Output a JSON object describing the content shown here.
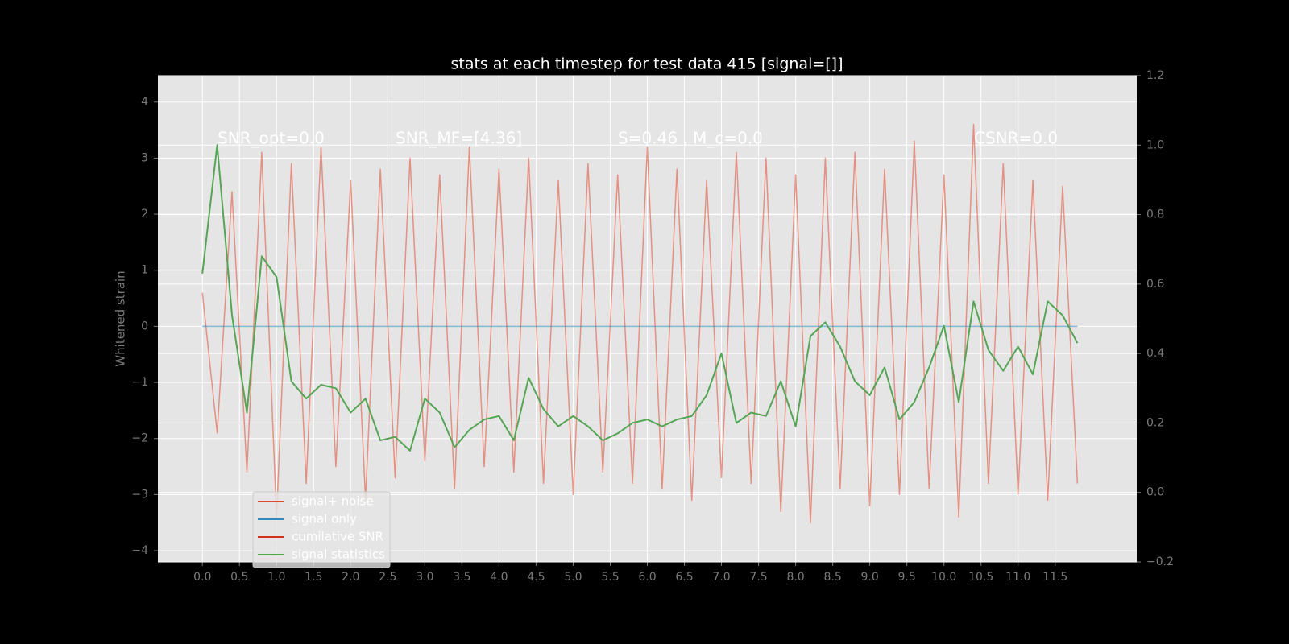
{
  "chart_data": {
    "type": "line",
    "title": "stats at each timestep for test data 415 [signal=[]]",
    "ylabel": "Whitened strain",
    "annotations": [
      "SNR_opt=0.0",
      "SNR_MF=[4.36]",
      "S=0.46 , M_c=0.0",
      "CSNR=0.0"
    ],
    "x": [
      0,
      0.2,
      0.4,
      0.6,
      0.8,
      1,
      1.2,
      1.4,
      1.6,
      1.8,
      2,
      2.2,
      2.4,
      2.6,
      2.8,
      3,
      3.2,
      3.4,
      3.6,
      3.8,
      4,
      4.2,
      4.4,
      4.6,
      4.8,
      5,
      5.2,
      5.4,
      5.6,
      5.8,
      6,
      6.2,
      6.4,
      6.6,
      6.8,
      7,
      7.2,
      7.4,
      7.6,
      7.8,
      8,
      8.2,
      8.4,
      8.6,
      8.8,
      9,
      9.2,
      9.4,
      9.6,
      9.8,
      10,
      10.2,
      10.4,
      10.6,
      10.8,
      11,
      11.2,
      11.4,
      11.6,
      11.8
    ],
    "series": [
      {
        "name": "signal+ noise",
        "color": "#e24a33",
        "values": [
          0.6,
          -1.9,
          2.4,
          -2.6,
          3.1,
          -3.4,
          2.9,
          -2.8,
          3.2,
          -2.5,
          2.6,
          -3.1,
          2.8,
          -2.7,
          3.0,
          -2.4,
          2.7,
          -2.9,
          3.2,
          -2.5,
          2.8,
          -2.6,
          3.0,
          -2.8,
          2.6,
          -3.0,
          2.9,
          -2.6,
          2.7,
          -2.8,
          3.2,
          -2.9,
          2.8,
          -3.1,
          2.6,
          -2.7,
          3.1,
          -2.8,
          3.0,
          -3.3,
          2.7,
          -3.5,
          3.0,
          -2.9,
          3.1,
          -3.2,
          2.8,
          -3.0,
          3.3,
          -2.9,
          2.7,
          -3.4,
          3.6,
          -2.8,
          2.9,
          -3.0,
          2.6,
          -3.1,
          2.5,
          -2.8
        ]
      },
      {
        "name": "signal only",
        "color": "#348abd",
        "values": [
          0,
          0,
          0,
          0,
          0,
          0,
          0,
          0,
          0,
          0,
          0,
          0,
          0,
          0,
          0,
          0,
          0,
          0,
          0,
          0,
          0,
          0,
          0,
          0,
          0,
          0,
          0,
          0,
          0,
          0,
          0,
          0,
          0,
          0,
          0,
          0,
          0,
          0,
          0,
          0,
          0,
          0,
          0,
          0,
          0,
          0,
          0,
          0,
          0,
          0,
          0,
          0,
          0,
          0,
          0,
          0,
          0,
          0,
          0,
          0
        ]
      },
      {
        "name": "cumilative SNR",
        "color": "#d62e1f",
        "values": [
          null,
          null,
          null,
          null,
          null,
          null,
          null,
          null,
          null,
          null,
          null,
          null,
          null,
          null,
          null,
          null,
          null,
          null,
          null,
          null,
          null,
          null,
          null,
          null,
          null,
          null,
          null,
          null,
          null,
          null,
          null,
          null,
          null,
          null,
          null,
          null,
          null,
          null,
          null,
          null,
          null,
          null,
          null,
          null,
          null,
          null,
          null,
          null,
          null,
          null,
          null,
          null,
          null,
          null,
          null,
          null,
          null,
          null,
          null,
          null
        ]
      },
      {
        "name": "signal statistics",
        "color": "#55a555",
        "axis": "y2",
        "values": [
          0.63,
          1.0,
          0.51,
          0.23,
          0.68,
          0.62,
          0.32,
          0.27,
          0.31,
          0.3,
          0.23,
          0.27,
          0.15,
          0.16,
          0.12,
          0.27,
          0.23,
          0.13,
          0.18,
          0.21,
          0.22,
          0.15,
          0.33,
          0.24,
          0.19,
          0.22,
          0.19,
          0.15,
          0.17,
          0.2,
          0.21,
          0.19,
          0.21,
          0.22,
          0.28,
          0.4,
          0.2,
          0.23,
          0.22,
          0.32,
          0.19,
          0.45,
          0.49,
          0.42,
          0.32,
          0.28,
          0.36,
          0.21,
          0.26,
          0.36,
          0.48,
          0.26,
          0.55,
          0.41,
          0.35,
          0.42,
          0.34,
          0.55,
          0.51,
          0.43
        ]
      }
    ],
    "xlim": [
      -0.6,
      12.6
    ],
    "xticks": [
      {
        "value": 0,
        "label": "0.0"
      },
      0.5,
      {
        "value": 1,
        "label": "1.0"
      },
      1.5,
      {
        "value": 2,
        "label": "2.0"
      },
      2.5,
      {
        "value": 3,
        "label": "3.0"
      },
      3.5,
      {
        "value": 4,
        "label": "4.0"
      },
      4.5,
      {
        "value": 5,
        "label": "5.0"
      },
      5.5,
      {
        "value": 6,
        "label": "6.0"
      },
      6.5,
      {
        "value": 7,
        "label": "7.0"
      },
      7.5,
      {
        "value": 8,
        "label": "8.0"
      },
      8.5,
      {
        "value": 9,
        "label": "9.0"
      },
      9.5,
      {
        "value": 10,
        "label": "10.0"
      },
      10.5,
      {
        "value": 11,
        "label": "11.0"
      },
      11.5
    ],
    "ylim": [
      -4.2,
      4.47
    ],
    "yticks": [
      {
        "value": -4,
        "label": "−4"
      },
      {
        "value": -3,
        "label": "−3"
      },
      {
        "value": -2,
        "label": "−2"
      },
      {
        "value": -1,
        "label": "−1"
      },
      0,
      1,
      2,
      3,
      4
    ],
    "y2lim": [
      -0.2,
      1.2
    ],
    "y2ticks": [
      {
        "value": -0.2,
        "label": "−0.2"
      },
      {
        "value": 0,
        "label": "0.0"
      },
      0.2,
      0.4,
      0.6,
      0.8,
      {
        "value": 1,
        "label": "1.0"
      },
      1.2
    ],
    "grid": true,
    "legend": "lower left"
  }
}
